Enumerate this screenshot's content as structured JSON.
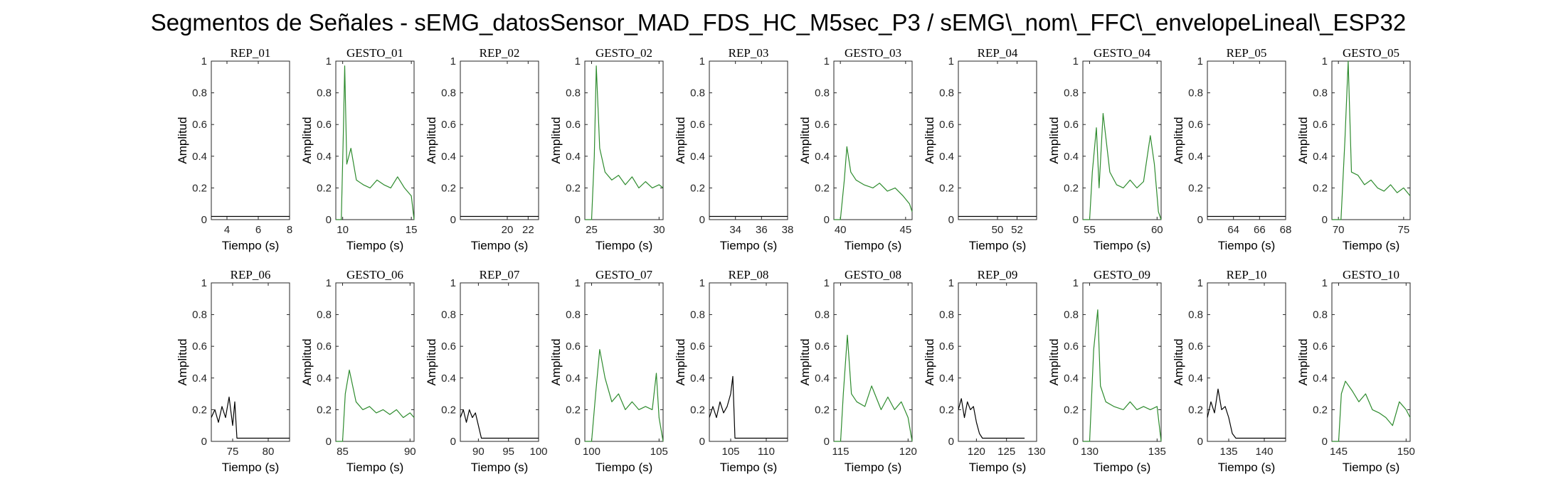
{
  "title": "Segmentos de Señales - sEMG_datosSensor_MAD_FDS_HC_M5sec_P3 / sEMG\\_nom\\_FFC\\_envelopeLineal\\_ESP32",
  "colors": {
    "rep": "#000000",
    "gesto": "#2e8b2e",
    "axes": "#262626"
  },
  "chart_data": [
    {
      "type": "line",
      "title": "REP_01",
      "xlabel": "Tiempo (s)",
      "ylabel": "Amplitud",
      "xlim": [
        3,
        8
      ],
      "ylim": [
        0,
        1
      ],
      "xticks": [
        4,
        6,
        8
      ],
      "yticks": [
        0,
        0.2,
        0.4,
        0.6,
        0.8,
        1
      ],
      "series": [
        {
          "x": [
            3,
            4,
            5,
            6,
            7,
            8
          ],
          "y": [
            0.02,
            0.02,
            0.02,
            0.02,
            0.02,
            0.02
          ]
        }
      ]
    },
    {
      "type": "line",
      "title": "GESTO_01",
      "xlabel": "Tiempo (s)",
      "ylabel": "Amplitud",
      "xlim": [
        9.5,
        15.2
      ],
      "ylim": [
        0,
        1
      ],
      "xticks": [
        10,
        15
      ],
      "yticks": [
        0,
        0.2,
        0.4,
        0.6,
        0.8,
        1
      ],
      "series": [
        {
          "x": [
            9.5,
            9.9,
            10.05,
            10.15,
            10.3,
            10.6,
            11,
            11.5,
            12,
            12.5,
            13,
            13.5,
            14,
            14.5,
            15,
            15.2
          ],
          "y": [
            0,
            0,
            0.55,
            0.97,
            0.35,
            0.45,
            0.25,
            0.22,
            0.2,
            0.25,
            0.22,
            0.2,
            0.27,
            0.2,
            0.15,
            0
          ]
        }
      ]
    },
    {
      "type": "line",
      "title": "REP_02",
      "xlabel": "Tiempo (s)",
      "ylabel": "Amplitud",
      "xlim": [
        15.5,
        23
      ],
      "ylim": [
        0,
        1
      ],
      "xticks": [
        20,
        22
      ],
      "yticks": [
        0,
        0.2,
        0.4,
        0.6,
        0.8,
        1
      ],
      "series": [
        {
          "x": [
            15.5,
            17,
            19,
            21,
            23
          ],
          "y": [
            0.02,
            0.02,
            0.02,
            0.02,
            0.02
          ]
        }
      ]
    },
    {
      "type": "line",
      "title": "GESTO_02",
      "xlabel": "Tiempo (s)",
      "ylabel": "Amplitud",
      "xlim": [
        24.5,
        30.3
      ],
      "ylim": [
        0,
        1
      ],
      "xticks": [
        25,
        30
      ],
      "yticks": [
        0,
        0.2,
        0.4,
        0.6,
        0.8,
        1
      ],
      "series": [
        {
          "x": [
            24.5,
            25,
            25.2,
            25.35,
            25.6,
            26,
            26.5,
            27,
            27.5,
            28,
            28.5,
            29,
            29.5,
            30,
            30.3
          ],
          "y": [
            0,
            0,
            0.4,
            0.97,
            0.45,
            0.3,
            0.25,
            0.28,
            0.22,
            0.27,
            0.2,
            0.24,
            0.2,
            0.22,
            0.2
          ]
        }
      ]
    },
    {
      "type": "line",
      "title": "REP_03",
      "xlabel": "Tiempo (s)",
      "ylabel": "Amplitud",
      "xlim": [
        32,
        38
      ],
      "ylim": [
        0,
        1
      ],
      "xticks": [
        34,
        36,
        38
      ],
      "yticks": [
        0,
        0.2,
        0.4,
        0.6,
        0.8,
        1
      ],
      "series": [
        {
          "x": [
            32,
            33.5,
            35,
            36.5,
            38
          ],
          "y": [
            0.02,
            0.02,
            0.02,
            0.02,
            0.02
          ]
        }
      ]
    },
    {
      "type": "line",
      "title": "GESTO_03",
      "xlabel": "Tiempo (s)",
      "ylabel": "Amplitud",
      "xlim": [
        39.5,
        45.5
      ],
      "ylim": [
        0,
        1
      ],
      "xticks": [
        40,
        45
      ],
      "yticks": [
        0,
        0.2,
        0.4,
        0.6,
        0.8,
        1
      ],
      "series": [
        {
          "x": [
            39.5,
            40,
            40.3,
            40.5,
            40.8,
            41.2,
            41.8,
            42.5,
            43,
            43.6,
            44.2,
            44.8,
            45.3,
            45.5
          ],
          "y": [
            0,
            0,
            0.25,
            0.46,
            0.3,
            0.25,
            0.22,
            0.2,
            0.23,
            0.18,
            0.2,
            0.15,
            0.1,
            0.05
          ]
        }
      ]
    },
    {
      "type": "line",
      "title": "REP_04",
      "xlabel": "Tiempo (s)",
      "ylabel": "Amplitud",
      "xlim": [
        46,
        54
      ],
      "ylim": [
        0,
        1
      ],
      "xticks": [
        50,
        52
      ],
      "yticks": [
        0,
        0.2,
        0.4,
        0.6,
        0.8,
        1
      ],
      "series": [
        {
          "x": [
            46,
            48,
            50,
            52,
            54
          ],
          "y": [
            0.02,
            0.02,
            0.02,
            0.02,
            0.02
          ]
        }
      ]
    },
    {
      "type": "line",
      "title": "GESTO_04",
      "xlabel": "Tiempo (s)",
      "ylabel": "Amplitud",
      "xlim": [
        54.5,
        60.3
      ],
      "ylim": [
        0,
        1
      ],
      "xticks": [
        55,
        60
      ],
      "yticks": [
        0,
        0.2,
        0.4,
        0.6,
        0.8,
        1
      ],
      "series": [
        {
          "x": [
            54.5,
            55,
            55.2,
            55.5,
            55.7,
            56,
            56.5,
            57,
            57.5,
            58,
            58.5,
            59,
            59.5,
            59.8,
            60.1,
            60.3
          ],
          "y": [
            0,
            0,
            0.3,
            0.58,
            0.2,
            0.67,
            0.3,
            0.22,
            0.2,
            0.25,
            0.2,
            0.24,
            0.53,
            0.35,
            0.05,
            0
          ]
        }
      ]
    },
    {
      "type": "line",
      "title": "REP_05",
      "xlabel": "Tiempo (s)",
      "ylabel": "Amplitud",
      "xlim": [
        62,
        68
      ],
      "ylim": [
        0,
        1
      ],
      "xticks": [
        64,
        66,
        68
      ],
      "yticks": [
        0,
        0.2,
        0.4,
        0.6,
        0.8,
        1
      ],
      "series": [
        {
          "x": [
            62,
            63.5,
            65,
            66.5,
            68
          ],
          "y": [
            0.02,
            0.02,
            0.02,
            0.02,
            0.02
          ]
        }
      ]
    },
    {
      "type": "line",
      "title": "GESTO_05",
      "xlabel": "Tiempo (s)",
      "ylabel": "Amplitud",
      "xlim": [
        69.5,
        75.5
      ],
      "ylim": [
        0,
        1
      ],
      "xticks": [
        70,
        75
      ],
      "yticks": [
        0,
        0.2,
        0.4,
        0.6,
        0.8,
        1
      ],
      "series": [
        {
          "x": [
            69.5,
            70.2,
            70.5,
            70.75,
            71,
            71.5,
            72,
            72.5,
            73,
            73.5,
            74,
            74.5,
            75,
            75.5
          ],
          "y": [
            0,
            0,
            0.5,
            1,
            0.3,
            0.28,
            0.22,
            0.25,
            0.2,
            0.18,
            0.22,
            0.17,
            0.2,
            0.15
          ]
        }
      ]
    },
    {
      "type": "line",
      "title": "REP_06",
      "xlabel": "Tiempo (s)",
      "ylabel": "Amplitud",
      "xlim": [
        72,
        83
      ],
      "ylim": [
        0,
        1
      ],
      "xticks": [
        75,
        80
      ],
      "yticks": [
        0,
        0.2,
        0.4,
        0.6,
        0.8,
        1
      ],
      "series": [
        {
          "x": [
            72,
            72.5,
            73,
            73.5,
            74,
            74.5,
            75,
            75.3,
            75.6,
            76.5,
            78,
            80,
            83
          ],
          "y": [
            0.15,
            0.2,
            0.12,
            0.22,
            0.15,
            0.28,
            0.1,
            0.25,
            0.02,
            0.02,
            0.02,
            0.02,
            0.02
          ]
        }
      ]
    },
    {
      "type": "line",
      "title": "GESTO_06",
      "xlabel": "Tiempo (s)",
      "ylabel": "Amplitud",
      "xlim": [
        84.5,
        90.3
      ],
      "ylim": [
        0,
        1
      ],
      "xticks": [
        85,
        90
      ],
      "yticks": [
        0,
        0.2,
        0.4,
        0.6,
        0.8,
        1
      ],
      "series": [
        {
          "x": [
            84.5,
            85,
            85.2,
            85.5,
            86,
            86.5,
            87,
            87.5,
            88,
            88.5,
            89,
            89.5,
            90,
            90.3
          ],
          "y": [
            0,
            0,
            0.3,
            0.45,
            0.25,
            0.2,
            0.22,
            0.18,
            0.2,
            0.17,
            0.2,
            0.15,
            0.18,
            0.15
          ]
        }
      ]
    },
    {
      "type": "line",
      "title": "REP_07",
      "xlabel": "Tiempo (s)",
      "ylabel": "Amplitud",
      "xlim": [
        87,
        100
      ],
      "ylim": [
        0,
        1
      ],
      "xticks": [
        90,
        95,
        100
      ],
      "yticks": [
        0,
        0.2,
        0.4,
        0.6,
        0.8,
        1
      ],
      "series": [
        {
          "x": [
            87,
            87.5,
            88,
            88.5,
            89,
            89.5,
            90,
            90.5,
            91,
            93,
            95,
            98,
            100
          ],
          "y": [
            0.15,
            0.2,
            0.12,
            0.2,
            0.15,
            0.18,
            0.1,
            0.02,
            0.02,
            0.02,
            0.02,
            0.02,
            0.02
          ]
        }
      ]
    },
    {
      "type": "line",
      "title": "GESTO_07",
      "xlabel": "Tiempo (s)",
      "ylabel": "Amplitud",
      "xlim": [
        99.5,
        105.3
      ],
      "ylim": [
        0,
        1
      ],
      "xticks": [
        100,
        105
      ],
      "yticks": [
        0,
        0.2,
        0.4,
        0.6,
        0.8,
        1
      ],
      "series": [
        {
          "x": [
            99.5,
            100,
            100.3,
            100.6,
            101,
            101.5,
            102,
            102.5,
            103,
            103.5,
            104,
            104.5,
            104.8,
            105,
            105.3
          ],
          "y": [
            0,
            0,
            0.3,
            0.58,
            0.4,
            0.25,
            0.3,
            0.2,
            0.25,
            0.2,
            0.22,
            0.2,
            0.43,
            0.15,
            0
          ]
        }
      ]
    },
    {
      "type": "line",
      "title": "REP_08",
      "xlabel": "Tiempo (s)",
      "ylabel": "Amplitud",
      "xlim": [
        102,
        113
      ],
      "ylim": [
        0,
        1
      ],
      "xticks": [
        105,
        110
      ],
      "yticks": [
        0,
        0.2,
        0.4,
        0.6,
        0.8,
        1
      ],
      "series": [
        {
          "x": [
            102,
            102.5,
            103,
            103.5,
            104,
            104.5,
            105,
            105.3,
            105.6,
            107,
            109,
            111,
            113
          ],
          "y": [
            0.15,
            0.22,
            0.15,
            0.25,
            0.18,
            0.22,
            0.3,
            0.41,
            0.02,
            0.02,
            0.02,
            0.02,
            0.02
          ]
        }
      ]
    },
    {
      "type": "line",
      "title": "GESTO_08",
      "xlabel": "Tiempo (s)",
      "ylabel": "Amplitud",
      "xlim": [
        114.5,
        120.3
      ],
      "ylim": [
        0,
        1
      ],
      "xticks": [
        115,
        120
      ],
      "yticks": [
        0,
        0.2,
        0.4,
        0.6,
        0.8,
        1
      ],
      "series": [
        {
          "x": [
            114.5,
            115,
            115.2,
            115.5,
            115.8,
            116.2,
            116.8,
            117.3,
            118,
            118.5,
            119,
            119.5,
            120,
            120.3
          ],
          "y": [
            0,
            0,
            0.3,
            0.67,
            0.3,
            0.25,
            0.22,
            0.35,
            0.2,
            0.28,
            0.2,
            0.25,
            0.15,
            0
          ]
        }
      ]
    },
    {
      "type": "line",
      "title": "REP_09",
      "xlabel": "Tiempo (s)",
      "ylabel": "Amplitud",
      "xlim": [
        117,
        130
      ],
      "ylim": [
        0,
        1
      ],
      "xticks": [
        120,
        125,
        130
      ],
      "yticks": [
        0,
        0.2,
        0.4,
        0.6,
        0.8,
        1
      ],
      "series": [
        {
          "x": [
            117,
            117.5,
            118,
            118.5,
            119,
            119.5,
            120,
            120.5,
            121,
            123,
            125,
            127,
            128
          ],
          "y": [
            0.2,
            0.27,
            0.15,
            0.25,
            0.2,
            0.22,
            0.12,
            0.05,
            0.02,
            0.02,
            0.02,
            0.02,
            0.02
          ]
        }
      ]
    },
    {
      "type": "line",
      "title": "GESTO_09",
      "xlabel": "Tiempo (s)",
      "ylabel": "Amplitud",
      "xlim": [
        129.5,
        135.3
      ],
      "ylim": [
        0,
        1
      ],
      "xticks": [
        130,
        135
      ],
      "yticks": [
        0,
        0.2,
        0.4,
        0.6,
        0.8,
        1
      ],
      "series": [
        {
          "x": [
            129.5,
            130,
            130.3,
            130.6,
            130.8,
            131.2,
            131.8,
            132.5,
            133,
            133.5,
            134,
            134.5,
            135,
            135.3
          ],
          "y": [
            0,
            0,
            0.58,
            0.83,
            0.35,
            0.25,
            0.22,
            0.2,
            0.25,
            0.2,
            0.22,
            0.2,
            0.22,
            0
          ]
        }
      ]
    },
    {
      "type": "line",
      "title": "REP_10",
      "xlabel": "Tiempo (s)",
      "ylabel": "Amplitud",
      "xlim": [
        132,
        143
      ],
      "ylim": [
        0,
        1
      ],
      "xticks": [
        135,
        140
      ],
      "yticks": [
        0,
        0.2,
        0.4,
        0.6,
        0.8,
        1
      ],
      "series": [
        {
          "x": [
            132,
            132.5,
            133,
            133.5,
            134,
            134.5,
            135,
            135.5,
            136,
            137.5,
            139,
            141,
            143
          ],
          "y": [
            0.15,
            0.25,
            0.18,
            0.33,
            0.2,
            0.22,
            0.15,
            0.05,
            0.02,
            0.02,
            0.02,
            0.02,
            0.02
          ]
        }
      ]
    },
    {
      "type": "line",
      "title": "GESTO_10",
      "xlabel": "Tiempo (s)",
      "ylabel": "Amplitud",
      "xlim": [
        144.5,
        150.3
      ],
      "ylim": [
        0,
        1
      ],
      "xticks": [
        145,
        150
      ],
      "yticks": [
        0,
        0.2,
        0.4,
        0.6,
        0.8,
        1
      ],
      "series": [
        {
          "x": [
            144.5,
            145,
            145.2,
            145.5,
            146,
            146.5,
            147,
            147.5,
            148,
            148.5,
            149,
            149.5,
            150,
            150.3
          ],
          "y": [
            0,
            0,
            0.3,
            0.38,
            0.32,
            0.25,
            0.3,
            0.2,
            0.18,
            0.15,
            0.1,
            0.25,
            0.2,
            0.15
          ]
        }
      ]
    }
  ]
}
